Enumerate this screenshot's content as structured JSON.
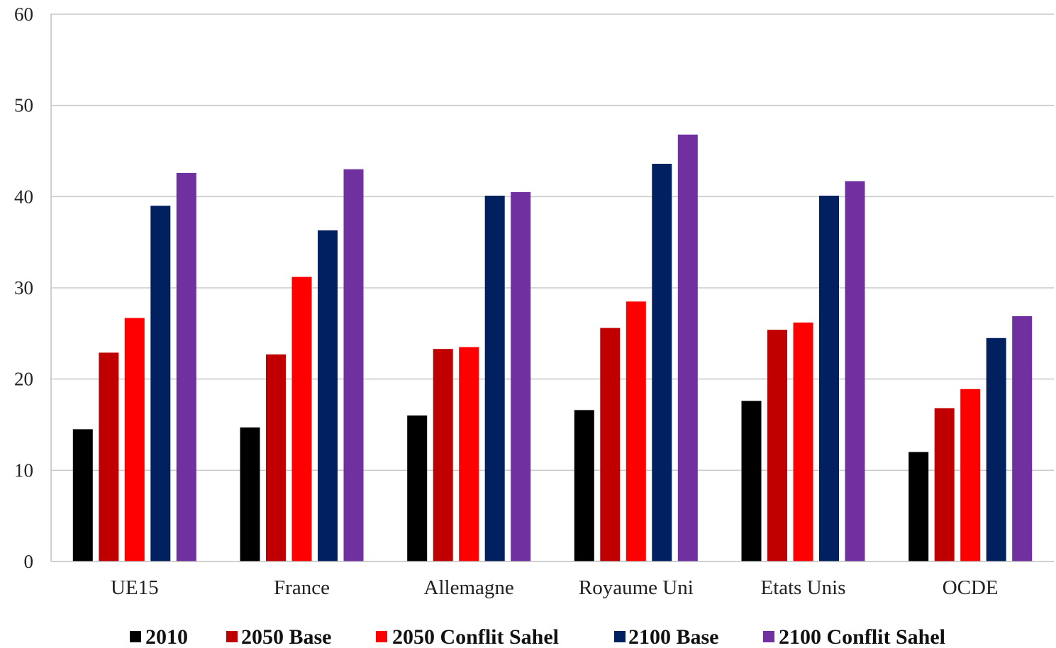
{
  "chart_data": {
    "type": "bar",
    "categories": [
      "UE15",
      "France",
      "Allemagne",
      "Royaume Uni",
      "Etats Unis",
      "OCDE"
    ],
    "series": [
      {
        "name": "2010",
        "color": "#000000",
        "values": [
          14.5,
          14.7,
          16.0,
          16.6,
          17.6,
          12.0
        ]
      },
      {
        "name": "2050 Base",
        "color": "#c00000",
        "values": [
          22.9,
          22.7,
          23.3,
          25.6,
          25.4,
          16.8
        ]
      },
      {
        "name": "2050 Conflit Sahel",
        "color": "#ff0000",
        "values": [
          26.7,
          31.2,
          23.5,
          28.5,
          26.2,
          18.9
        ]
      },
      {
        "name": "2100 Base",
        "color": "#002060",
        "values": [
          39.0,
          36.3,
          40.1,
          43.6,
          40.1,
          24.5
        ]
      },
      {
        "name": "2100 Conflit Sahel",
        "color": "#7030a0",
        "values": [
          42.6,
          43.0,
          40.5,
          46.8,
          41.7,
          26.9
        ]
      }
    ],
    "ylim": [
      0,
      60
    ],
    "yticks": [
      "0",
      "10",
      "20",
      "30",
      "40",
      "50",
      "60"
    ],
    "xlabel": "",
    "ylabel": "",
    "title": "",
    "grid": true,
    "legend_position": "bottom"
  }
}
